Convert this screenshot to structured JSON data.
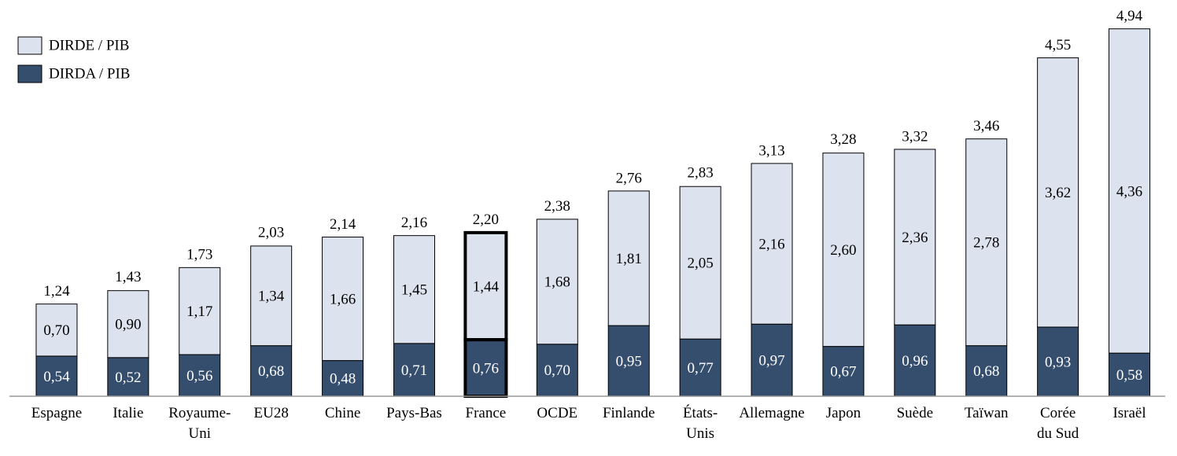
{
  "chart_data": {
    "type": "stacked_bar",
    "categories": [
      "Espagne",
      "Italie",
      "Royaume-\nUni",
      "EU28",
      "Chine",
      "Pays-Bas",
      "France",
      "OCDE",
      "Finlande",
      "États-\nUnis",
      "Allemagne",
      "Japon",
      "Suède",
      "Taïwan",
      "Corée\ndu Sud",
      "Israël"
    ],
    "series": [
      {
        "name": "DIRDE / PIB",
        "color": "#dde3ee",
        "label_color": "#000000",
        "values": [
          0.7,
          0.9,
          1.17,
          1.34,
          1.66,
          1.45,
          1.44,
          1.68,
          1.81,
          2.05,
          2.16,
          2.6,
          2.36,
          2.78,
          3.62,
          4.36
        ],
        "value_labels": [
          "0,70",
          "0,90",
          "1,17",
          "1,34",
          "1,66",
          "1,45",
          "1,44",
          "1,68",
          "1,81",
          "2,05",
          "2,16",
          "2,60",
          "2,36",
          "2,78",
          "3,62",
          "4,36"
        ]
      },
      {
        "name": "DIRDA / PIB",
        "color": "#364e6e",
        "label_color": "#ffffff",
        "values": [
          0.54,
          0.52,
          0.56,
          0.68,
          0.48,
          0.71,
          0.76,
          0.7,
          0.95,
          0.77,
          0.97,
          0.67,
          0.96,
          0.68,
          0.93,
          0.58
        ],
        "value_labels": [
          "0,54",
          "0,52",
          "0,56",
          "0,68",
          "0,48",
          "0,71",
          "0,76",
          "0,70",
          "0,95",
          "0,77",
          "0,97",
          "0,67",
          "0,96",
          "0,68",
          "0,93",
          "0,58"
        ]
      }
    ],
    "totals": [
      1.24,
      1.43,
      1.73,
      2.03,
      2.14,
      2.16,
      2.2,
      2.38,
      2.76,
      2.83,
      3.13,
      3.28,
      3.32,
      3.46,
      4.55,
      4.94
    ],
    "total_labels": [
      "1,24",
      "1,43",
      "1,73",
      "2,03",
      "2,14",
      "2,16",
      "2,20",
      "2,38",
      "2,76",
      "2,83",
      "3,13",
      "3,28",
      "3,32",
      "3,46",
      "4,55",
      "4,94"
    ],
    "ylim": [
      0,
      5
    ],
    "highlight_index": 6,
    "legend": "top-left"
  }
}
